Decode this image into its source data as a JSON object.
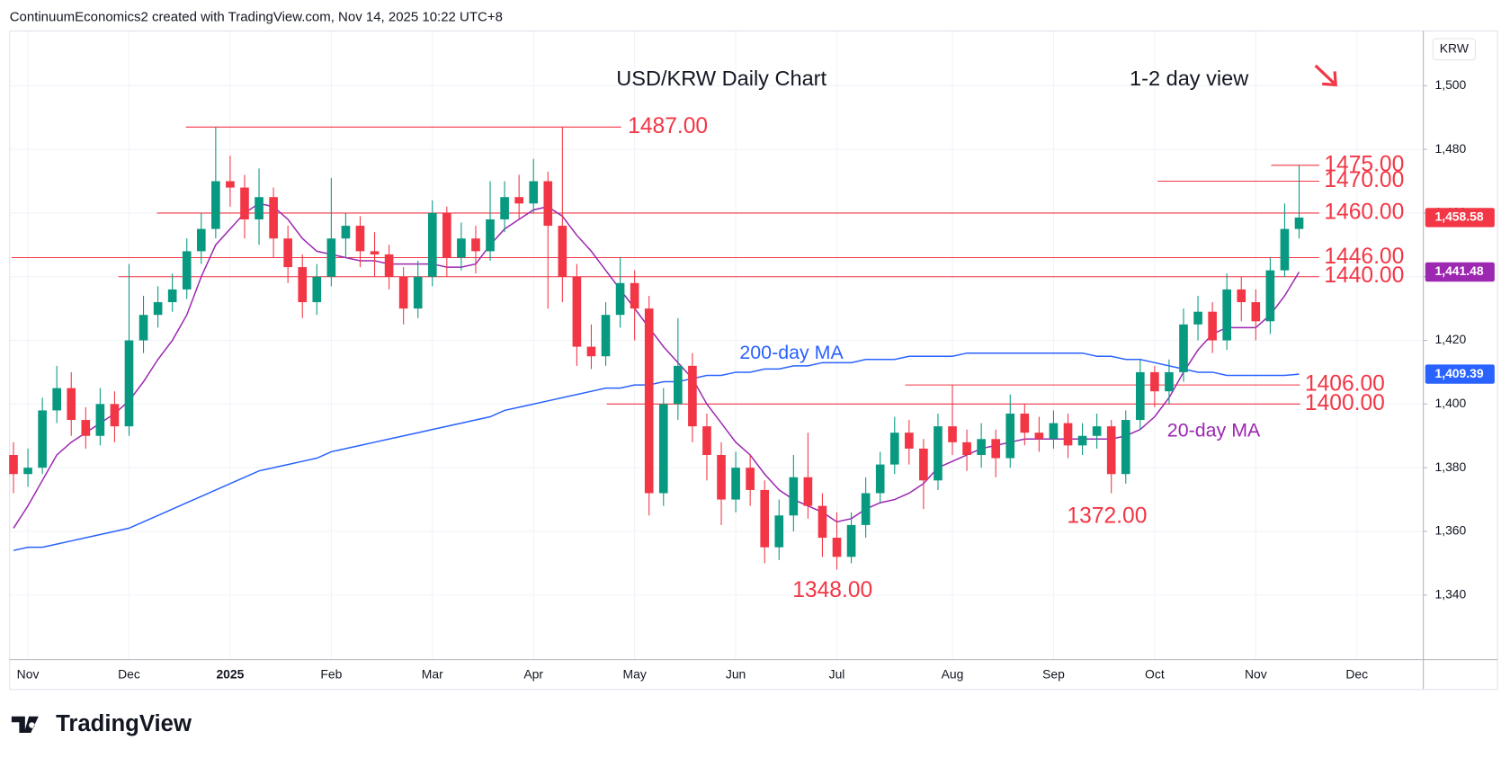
{
  "chart_data": {
    "type": "candlestick",
    "header": "ContinuumEconomics2 created with TradingView.com, Nov 14, 2025 10:22 UTC+8",
    "title": "USD/KRW Daily Chart",
    "subtitle": "1-2 day view",
    "currency": "KRW",
    "brand": "TradingView",
    "up_color": "#089981",
    "down_color": "#f23645",
    "grid": true,
    "ylim": [
      1319.7,
      1517.2
    ],
    "yticks": [
      {
        "value": 1340,
        "label": "1,340"
      },
      {
        "value": 1360,
        "label": "1,360"
      },
      {
        "value": 1380,
        "label": "1,380"
      },
      {
        "value": 1400,
        "label": "1,400"
      },
      {
        "value": 1420,
        "label": "1,420"
      },
      {
        "value": 1440,
        "label": "1,440"
      },
      {
        "value": 1460,
        "label": "1,460"
      },
      {
        "value": 1480,
        "label": "1,480"
      },
      {
        "value": 1500,
        "label": "1,500"
      }
    ],
    "categories": [
      null,
      "Nov",
      null,
      null,
      null,
      null,
      null,
      null,
      "Dec",
      null,
      null,
      null,
      null,
      null,
      null,
      "2025",
      null,
      null,
      null,
      null,
      null,
      null,
      "Feb",
      null,
      null,
      null,
      null,
      null,
      null,
      "Mar",
      null,
      null,
      null,
      null,
      null,
      null,
      "Apr",
      null,
      null,
      null,
      null,
      null,
      null,
      "May",
      null,
      null,
      null,
      null,
      null,
      null,
      "Jun",
      null,
      null,
      null,
      null,
      null,
      null,
      "Jul",
      null,
      null,
      null,
      null,
      null,
      null,
      null,
      "Aug",
      null,
      null,
      null,
      null,
      null,
      null,
      "Sep",
      null,
      null,
      null,
      null,
      null,
      null,
      "Oct",
      null,
      null,
      null,
      null,
      null,
      null,
      "Nov",
      null,
      null,
      null,
      null,
      null,
      null,
      "Dec"
    ],
    "open": [
      1384,
      1378,
      1380,
      1398,
      1405,
      1395,
      1390,
      1400,
      1393,
      1420,
      1428,
      1432,
      1436,
      1448,
      1455,
      1470,
      1468,
      1458,
      1465,
      1452,
      1443,
      1432,
      1440,
      1452,
      1456,
      1448,
      1447,
      1440,
      1430,
      1440,
      1460,
      1446,
      1452,
      1448,
      1458,
      1465,
      1463,
      1470,
      1456,
      1440,
      1418,
      1415,
      1428,
      1438,
      1430,
      1372,
      1400,
      1412,
      1393,
      1384,
      1370,
      1380,
      1373,
      1355,
      1365,
      1377,
      1368,
      1358,
      1352,
      1362,
      1372,
      1381,
      1391,
      1386,
      1376,
      1393,
      1388,
      1384,
      1389,
      1383,
      1397,
      1391,
      1389,
      1394,
      1387,
      1390,
      1393,
      1378,
      1395,
      1410,
      1404,
      1410,
      1425,
      1429,
      1420,
      1436,
      1432,
      1426,
      1442,
      1455,
      null,
      null,
      null,
      null
    ],
    "high": [
      1388,
      1386,
      1402,
      1412,
      1410,
      1399,
      1405,
      1404,
      1444,
      1434,
      1437,
      1441,
      1452,
      1460,
      1487,
      1478,
      1472,
      1474,
      1468,
      1456,
      1447,
      1444,
      1471,
      1460,
      1459,
      1454,
      1450,
      1443,
      1445,
      1464,
      1462,
      1457,
      1456,
      1470,
      1470,
      1472,
      1477,
      1473,
      1487,
      1444,
      1425,
      1432,
      1446,
      1442,
      1434,
      1405,
      1427,
      1416,
      1397,
      1388,
      1385,
      1384,
      1376,
      1370,
      1384,
      1391,
      1372,
      1366,
      1366,
      1377,
      1385,
      1396,
      1395,
      1389,
      1397,
      1406,
      1392,
      1394,
      1392,
      1403,
      1400,
      1396,
      1398,
      1397,
      1394,
      1397,
      1395,
      1398,
      1414,
      1412,
      1414,
      1430,
      1434,
      1432,
      1441,
      1440,
      1436,
      1446,
      1463,
      1475,
      null,
      null,
      null,
      null
    ],
    "low": [
      1372,
      1374,
      1378,
      1394,
      1390,
      1386,
      1387,
      1388,
      1390,
      1416,
      1424,
      1429,
      1433,
      1444,
      1452,
      1462,
      1452,
      1450,
      1446,
      1438,
      1427,
      1428,
      1437,
      1446,
      1443,
      1440,
      1436,
      1425,
      1427,
      1437,
      1440,
      1442,
      1441,
      1445,
      1454,
      1458,
      1460,
      1430,
      1432,
      1412,
      1411,
      1412,
      1424,
      1420,
      1365,
      1368,
      1395,
      1388,
      1376,
      1362,
      1366,
      1368,
      1350,
      1351,
      1360,
      1364,
      1352,
      1348,
      1350,
      1358,
      1369,
      1378,
      1381,
      1367,
      1373,
      1384,
      1379,
      1380,
      1377,
      1380,
      1387,
      1385,
      1386,
      1383,
      1384,
      1386,
      1372,
      1375,
      1392,
      1399,
      1400,
      1407,
      1420,
      1416,
      1417,
      1426,
      1420,
      1422,
      1440,
      1452,
      null,
      null,
      null,
      null
    ],
    "close": [
      1378,
      1380,
      1398,
      1405,
      1395,
      1390,
      1400,
      1393,
      1420,
      1428,
      1432,
      1436,
      1448,
      1455,
      1470,
      1468,
      1458,
      1465,
      1452,
      1443,
      1432,
      1440,
      1452,
      1456,
      1448,
      1447,
      1440,
      1430,
      1440,
      1460,
      1446,
      1452,
      1448,
      1458,
      1465,
      1463,
      1470,
      1456,
      1440,
      1418,
      1415,
      1428,
      1438,
      1430,
      1372,
      1400,
      1412,
      1393,
      1384,
      1370,
      1380,
      1373,
      1355,
      1365,
      1377,
      1368,
      1358,
      1352,
      1362,
      1372,
      1381,
      1391,
      1386,
      1376,
      1393,
      1388,
      1384,
      1389,
      1383,
      1397,
      1391,
      1389,
      1394,
      1387,
      1390,
      1393,
      1378,
      1395,
      1410,
      1404,
      1410,
      1425,
      1429,
      1420,
      1436,
      1432,
      1426,
      1442,
      1455,
      1458.58,
      null,
      null,
      null,
      null
    ],
    "series": [
      {
        "name": "20-day MA",
        "color": "#9c27b0",
        "values": [
          1361,
          1368,
          1376,
          1384,
          1388,
          1391,
          1394,
          1397,
          1401,
          1407,
          1414,
          1420,
          1428,
          1440,
          1450,
          1455,
          1460,
          1463,
          1462,
          1458,
          1452,
          1448,
          1447,
          1446,
          1445,
          1445,
          1444,
          1444,
          1444,
          1444,
          1443,
          1443,
          1444,
          1450,
          1455,
          1458,
          1461,
          1462,
          1459,
          1453,
          1448,
          1442,
          1436,
          1430,
          1424,
          1418,
          1413,
          1408,
          1400,
          1394,
          1388,
          1384,
          1378,
          1373,
          1370,
          1368,
          1366,
          1363,
          1364,
          1367,
          1369,
          1370,
          1372,
          1375,
          1380,
          1382,
          1384,
          1386,
          1387,
          1388,
          1389,
          1389,
          1389,
          1389,
          1389,
          1389,
          1389,
          1390,
          1392,
          1396,
          1402,
          1410,
          1417,
          1422,
          1424,
          1424,
          1424,
          1428,
          1434,
          1441.48,
          null,
          null,
          null,
          null
        ]
      },
      {
        "name": "200-day MA",
        "color": "#2962ff",
        "values": [
          1354,
          1355,
          1355,
          1356,
          1357,
          1358,
          1359,
          1360,
          1361,
          1363,
          1365,
          1367,
          1369,
          1371,
          1373,
          1375,
          1377,
          1379,
          1380,
          1381,
          1382,
          1383,
          1385,
          1386,
          1387,
          1388,
          1389,
          1390,
          1391,
          1392,
          1393,
          1394,
          1395,
          1396,
          1398,
          1399,
          1400,
          1401,
          1402,
          1403,
          1404,
          1405,
          1405,
          1406,
          1406,
          1407,
          1407,
          1408,
          1409,
          1409,
          1410,
          1410,
          1411,
          1411,
          1412,
          1412,
          1413,
          1413,
          1413,
          1414,
          1414,
          1414,
          1415,
          1415,
          1415,
          1415,
          1416,
          1416,
          1416,
          1416,
          1416,
          1416,
          1416,
          1416,
          1416,
          1415,
          1415,
          1414,
          1414,
          1413,
          1412,
          1411,
          1410,
          1410,
          1409,
          1409,
          1409,
          1409,
          1409,
          1409.39,
          null,
          null,
          null,
          null
        ]
      }
    ],
    "levels": [
      {
        "value": 1487,
        "label": "1487.00"
      },
      {
        "value": 1475,
        "label": "1475.00"
      },
      {
        "value": 1470,
        "label": "1470.00"
      },
      {
        "value": 1460,
        "label": "1460.00"
      },
      {
        "value": 1446,
        "label": "1446.00"
      },
      {
        "value": 1440,
        "label": "1440.00"
      },
      {
        "value": 1406,
        "label": "1406.00"
      },
      {
        "value": 1400,
        "label": "1400.00"
      }
    ],
    "low_labels": [
      {
        "value": 1348,
        "label": "1348.00"
      },
      {
        "value": 1372,
        "label": "1372.00"
      }
    ],
    "price_tags": [
      {
        "value": 1458.58,
        "label": "1,458.58",
        "color": "#f23645"
      },
      {
        "value": 1441.48,
        "label": "1,441.48",
        "color": "#9c27b0"
      },
      {
        "value": 1409.39,
        "label": "1,409.39",
        "color": "#2962ff"
      }
    ]
  }
}
